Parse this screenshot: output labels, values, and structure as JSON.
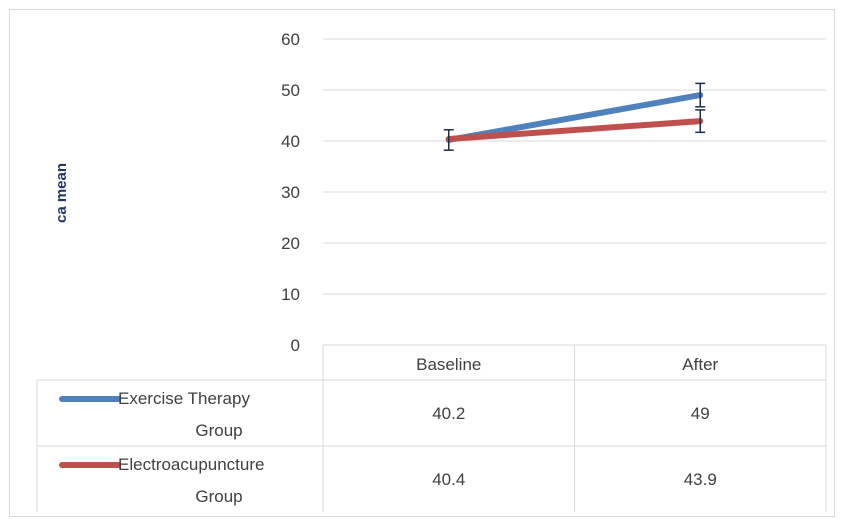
{
  "chart_data": {
    "type": "line",
    "title": "",
    "xlabel": "",
    "ylabel": "ca mean",
    "categories": [
      "Baseline",
      "After"
    ],
    "ylim": [
      0,
      60
    ],
    "yticks": [
      0,
      10,
      20,
      30,
      40,
      50,
      60
    ],
    "grid": true,
    "legend": "data-table",
    "series": [
      {
        "name": "Exercise Therapy Group",
        "values": [
          40.2,
          49
        ],
        "value_labels": [
          "40.2",
          "49"
        ],
        "color": "#4f81bd",
        "error": [
          2.0,
          2.3
        ]
      },
      {
        "name": "Electroacupuncture Group",
        "values": [
          40.4,
          43.9
        ],
        "value_labels": [
          "40.4",
          "43.9"
        ],
        "color": "#c0504d",
        "error": [
          null,
          2.2
        ]
      }
    ]
  }
}
